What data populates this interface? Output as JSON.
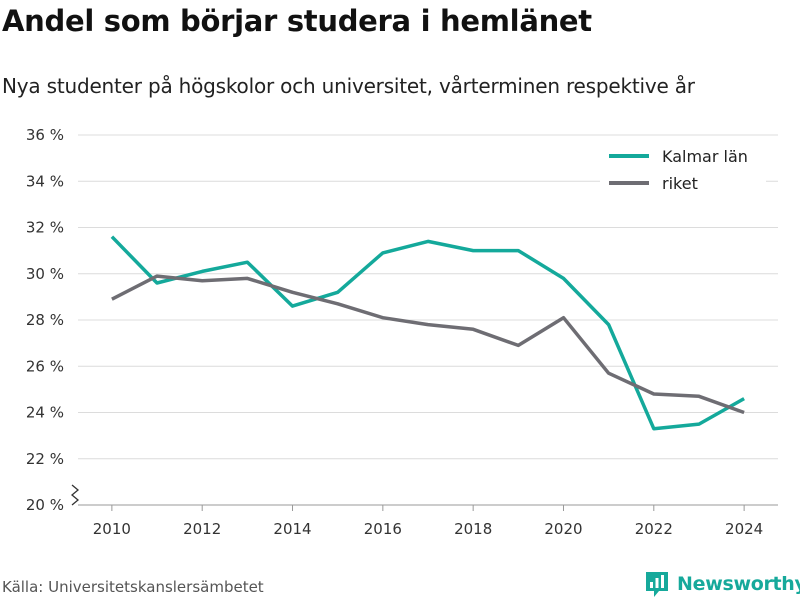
{
  "header": {
    "title": "Andel som börjar studera i hemlänet",
    "subtitle": "Nya studenter på högskolor och universitet, vårterminen respektive år"
  },
  "footer": {
    "source": "Källa: Universitetskanslersämbetet",
    "brand": "Newsworthy",
    "brand_icon": "bar-chart-logo-icon"
  },
  "colors": {
    "kalmar": "#14a99b",
    "riket": "#6e6d73",
    "brand": "#16a99b",
    "grid": "#dcdcdc"
  },
  "chart_data": {
    "type": "line",
    "title": "Andel som börjar studera i hemlänet",
    "subtitle": "Nya studenter på högskolor och universitet, vårterminen respektive år",
    "x": [
      2010,
      2011,
      2012,
      2013,
      2014,
      2015,
      2016,
      2017,
      2018,
      2019,
      2020,
      2021,
      2022,
      2023,
      2024
    ],
    "series": [
      {
        "name": "Kalmar län",
        "color": "#14a99b",
        "values": [
          31.6,
          29.6,
          30.1,
          30.5,
          28.6,
          29.2,
          30.9,
          31.4,
          31.0,
          31.0,
          29.8,
          27.8,
          23.3,
          23.5,
          24.6
        ]
      },
      {
        "name": "riket",
        "color": "#6e6d73",
        "values": [
          28.9,
          29.9,
          29.7,
          29.8,
          29.2,
          28.7,
          28.1,
          27.8,
          27.6,
          26.9,
          28.1,
          25.7,
          24.8,
          24.7,
          24.0
        ]
      }
    ],
    "ylim": [
      20,
      36
    ],
    "y_ticks": [
      20,
      22,
      24,
      26,
      28,
      30,
      32,
      34,
      36
    ],
    "y_tick_labels": [
      "20 %",
      "22 %",
      "24 %",
      "26 %",
      "28 %",
      "30 %",
      "32 %",
      "34 %",
      "36 %"
    ],
    "x_ticks": [
      2010,
      2012,
      2014,
      2016,
      2018,
      2020,
      2022,
      2024
    ],
    "x_tick_labels": [
      "2010",
      "2012",
      "2014",
      "2016",
      "2018",
      "2020",
      "2022",
      "2024"
    ],
    "grid": true,
    "y_axis_break": true,
    "legend": "top-right"
  }
}
